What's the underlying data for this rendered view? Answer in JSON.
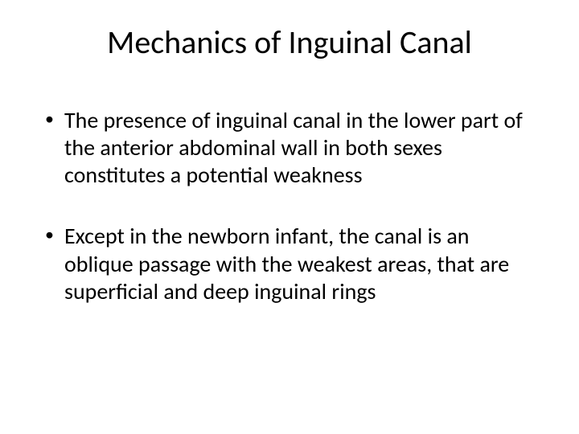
{
  "slide": {
    "title": "Mechanics of Inguinal Canal",
    "bullets": [
      "The presence of inguinal canal in the lower part of the anterior abdominal wall in both sexes constitutes a potential weakness",
      "Except in the newborn infant, the canal is an oblique passage with the weakest areas, that are superficial and deep inguinal rings"
    ],
    "colors": {
      "background": "#ffffff",
      "text": "#000000"
    },
    "typography": {
      "title_fontsize_pt": 40,
      "body_fontsize_pt": 28,
      "font_family": "Calibri"
    }
  }
}
